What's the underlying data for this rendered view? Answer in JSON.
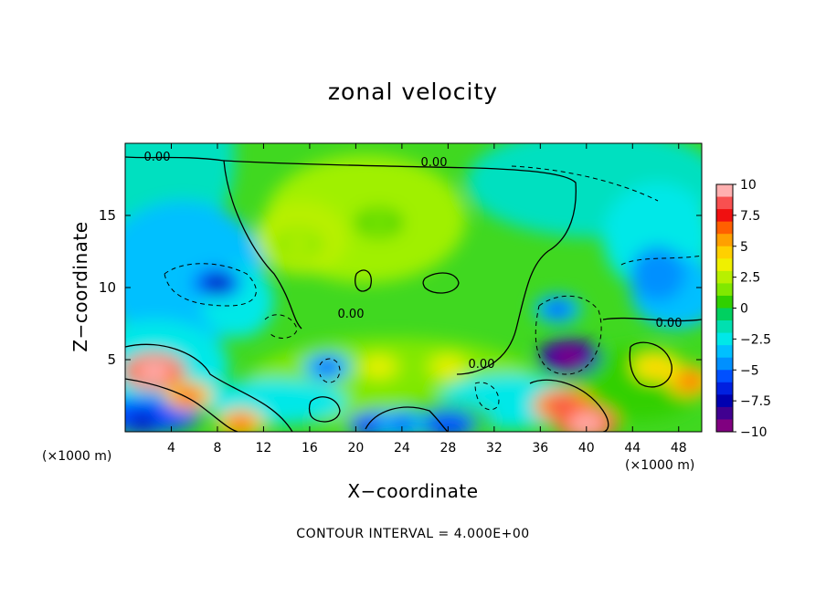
{
  "chart_data": {
    "type": "heatmap",
    "title": "zonal velocity",
    "xlabel": "X−coordinate",
    "ylabel": "Z−coordinate",
    "x_unit": "(×1000 m)",
    "xlim": [
      0,
      50
    ],
    "ylim": [
      0,
      20
    ],
    "x_ticks": [
      4,
      8,
      12,
      16,
      20,
      24,
      28,
      32,
      36,
      40,
      44,
      48
    ],
    "y_ticks": [
      5,
      10,
      15
    ],
    "colorbar": {
      "ticks": [
        "10",
        "7.5",
        "5",
        "2.5",
        "0",
        "−2.5",
        "−5",
        "−7.5",
        "−10"
      ],
      "levels": [
        10,
        9,
        8,
        7,
        6,
        5,
        4,
        3,
        2,
        1,
        0,
        -1,
        -2,
        -3,
        -4,
        -5,
        -6,
        -7,
        -8,
        -9
      ],
      "colors": [
        "#ffb0b0",
        "#f85050",
        "#f01010",
        "#ff6000",
        "#ffa000",
        "#ffd000",
        "#f0f000",
        "#b8f000",
        "#80e800",
        "#30d000",
        "#00d060",
        "#00e0b0",
        "#00e8e8",
        "#00c0ff",
        "#0090ff",
        "#0050ff",
        "#0020e0",
        "#0000b0",
        "#400090",
        "#800080"
      ]
    },
    "contour_labels": [
      "0.00",
      "0.00",
      "0.00",
      "0.00",
      "0.00"
    ],
    "annotation": "CONTOUR INTERVAL = 4.000E+00",
    "field_features": [
      {
        "x": 2.5,
        "z": 4.2,
        "value": 10
      },
      {
        "x": 5.5,
        "z": 2.5,
        "value": 7
      },
      {
        "x": 10,
        "z": 0.6,
        "value": 7
      },
      {
        "x": 38,
        "z": 1.8,
        "value": 9
      },
      {
        "x": 40,
        "z": 0.6,
        "value": 10
      },
      {
        "x": 46,
        "z": 4.5,
        "value": 5
      },
      {
        "x": 8,
        "z": 10.3,
        "value": -7
      },
      {
        "x": 38.5,
        "z": 5.2,
        "value": -10
      },
      {
        "x": 37.5,
        "z": 8.5,
        "value": -5
      },
      {
        "x": 17.5,
        "z": 4.5,
        "value": -5
      },
      {
        "x": 22,
        "z": 14.5,
        "value": 2
      },
      {
        "x": 15,
        "z": 13,
        "value": 2.5
      },
      {
        "x": 28,
        "z": 4.5,
        "value": 4
      },
      {
        "x": 22,
        "z": 4.5,
        "value": 4
      },
      {
        "x": 1.5,
        "z": 0.7,
        "value": -7
      },
      {
        "x": 24,
        "z": 0.5,
        "value": -5
      },
      {
        "x": 49,
        "z": 3.5,
        "value": 7
      }
    ]
  }
}
